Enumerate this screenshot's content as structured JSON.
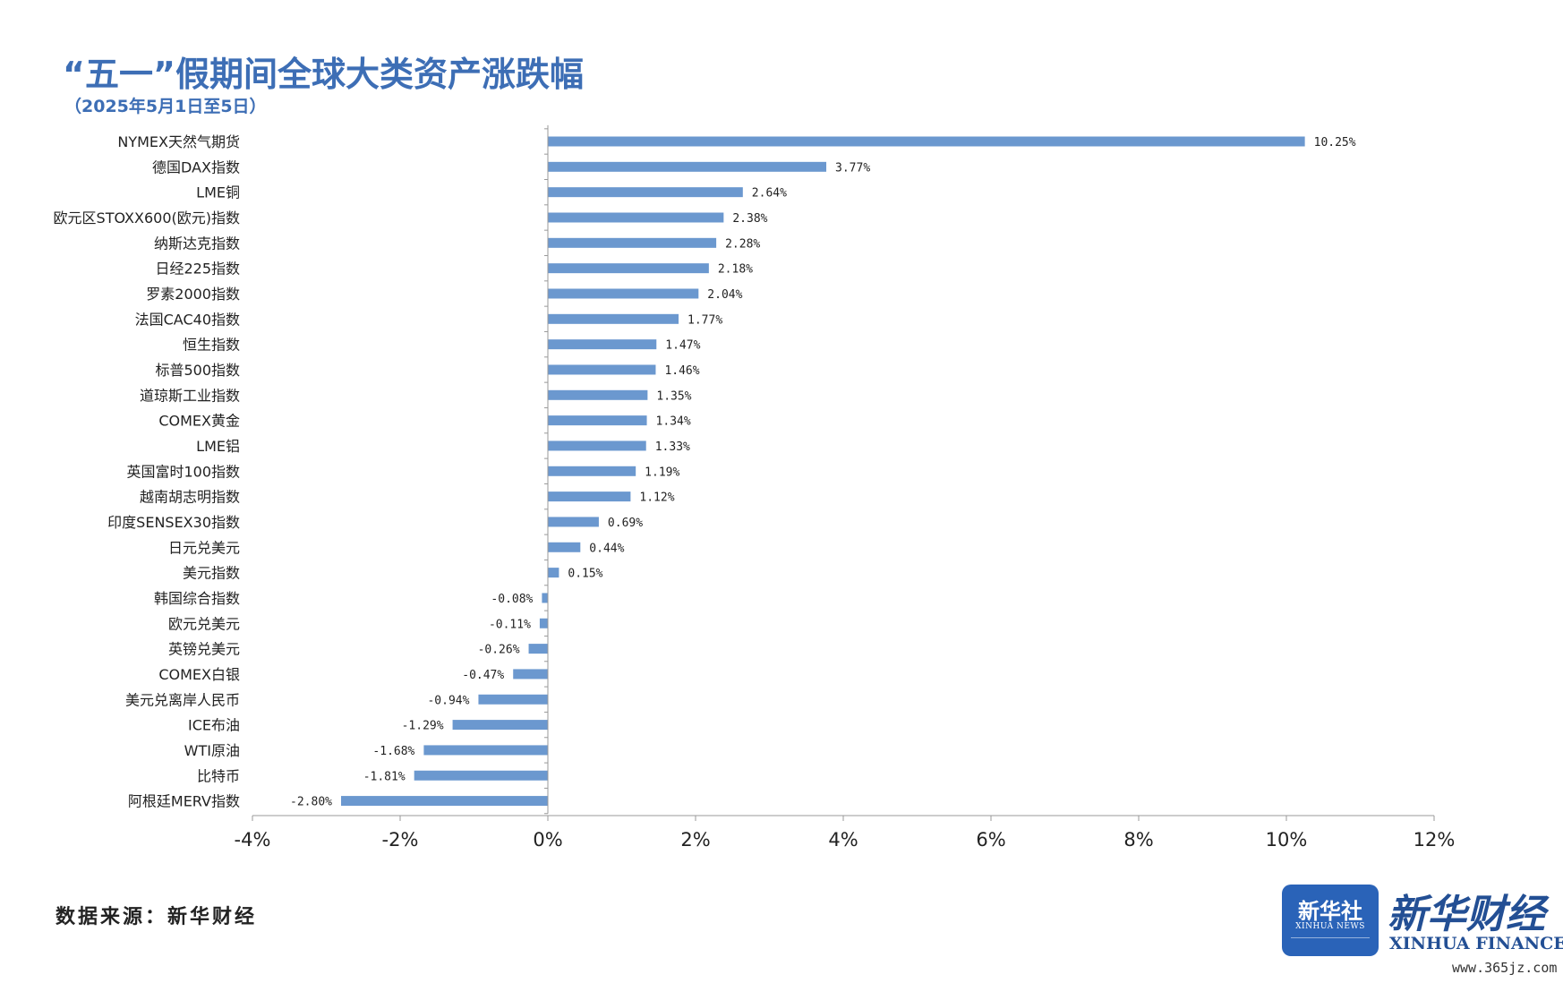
{
  "header": {
    "title": "“五一”假期间全球大类资产涨跌幅",
    "subtitle": "（2025年5月1日至5日）"
  },
  "footer": {
    "source": "数据来源：新华财经",
    "logo_box_cn": "新华社",
    "logo_box_en": "XINHUA NEWS",
    "brand_cn": "新华财经",
    "brand_en": "XINHUA FINANCE",
    "watermark": "www.365jz.com"
  },
  "colors": {
    "bar": "#6b98cf",
    "title": "#3d6eb5",
    "axis": "#999999",
    "text": "#222222"
  },
  "chart_data": {
    "type": "bar",
    "orientation": "horizontal",
    "title": "“五一”假期间全球大类资产涨跌幅",
    "subtitle": "（2025年5月1日至5日）",
    "xlim": [
      -4,
      12
    ],
    "xticks": [
      -4,
      -2,
      0,
      2,
      4,
      6,
      8,
      10,
      12
    ],
    "xtick_labels": [
      "-4%",
      "-2%",
      "0%",
      "2%",
      "4%",
      "6%",
      "8%",
      "10%",
      "12%"
    ],
    "grid": false,
    "categories": [
      "NYMEX天然气期货",
      "德国DAX指数",
      "LME铜",
      "欧元区STOXX600(欧元)指数",
      "纳斯达克指数",
      "日经225指数",
      "罗素2000指数",
      "法国CAC40指数",
      "恒生指数",
      "标普500指数",
      "道琼斯工业指数",
      "COMEX黄金",
      "LME铝",
      "英国富时100指数",
      "越南胡志明指数",
      "印度SENSEX30指数",
      "日元兑美元",
      "美元指数",
      "韩国综合指数",
      "欧元兑美元",
      "英镑兑美元",
      "COMEX白银",
      "美元兑离岸人民币",
      "ICE布油",
      "WTI原油",
      "比特币",
      "阿根廷MERV指数"
    ],
    "values": [
      10.25,
      3.77,
      2.64,
      2.38,
      2.28,
      2.18,
      2.04,
      1.77,
      1.47,
      1.46,
      1.35,
      1.34,
      1.33,
      1.19,
      1.12,
      0.69,
      0.44,
      0.15,
      -0.08,
      -0.11,
      -0.26,
      -0.47,
      -0.94,
      -1.29,
      -1.68,
      -1.81,
      -2.8
    ],
    "data_labels": [
      "10.25%",
      "3.77%",
      "2.64%",
      "2.38%",
      "2.28%",
      "2.18%",
      "2.04%",
      "1.77%",
      "1.47%",
      "1.46%",
      "1.35%",
      "1.34%",
      "1.33%",
      "1.19%",
      "1.12%",
      "0.69%",
      "0.44%",
      "0.15%",
      "-0.08%",
      "-0.11%",
      "-0.26%",
      "-0.47%",
      "-0.94%",
      "-1.29%",
      "-1.68%",
      "-1.81%",
      "-2.80%"
    ]
  }
}
